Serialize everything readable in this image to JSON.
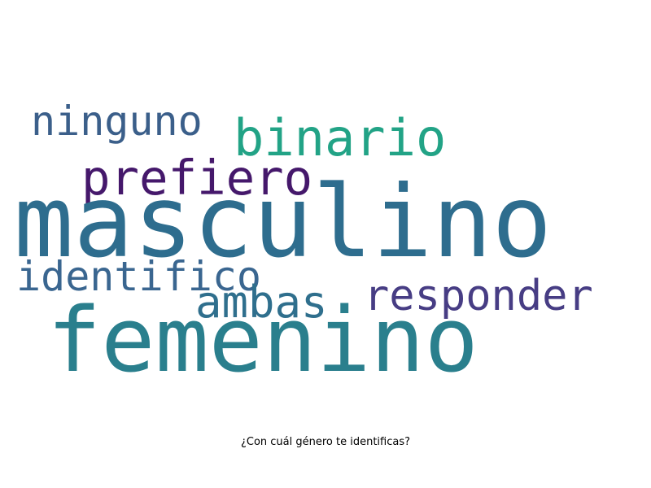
{
  "caption": "¿Con cuál género te identificas?",
  "words": [
    {
      "key": "ninguno",
      "text": "ninguno",
      "color": "#3b5f8a"
    },
    {
      "key": "binario",
      "text": "binario",
      "color": "#22a386"
    },
    {
      "key": "prefiero",
      "text": "prefiero",
      "color": "#45186b"
    },
    {
      "key": "masculino",
      "text": "masculino",
      "color": "#2e6d8e"
    },
    {
      "key": "identifico",
      "text": "identifico",
      "color": "#3a6690"
    },
    {
      "key": "ambas",
      "text": "ambas",
      "color": "#2f6f8d"
    },
    {
      "key": "responder",
      "text": "responder",
      "color": "#473d84"
    },
    {
      "key": "femenino",
      "text": "femenino",
      "color": "#2a7f8d"
    }
  ]
}
